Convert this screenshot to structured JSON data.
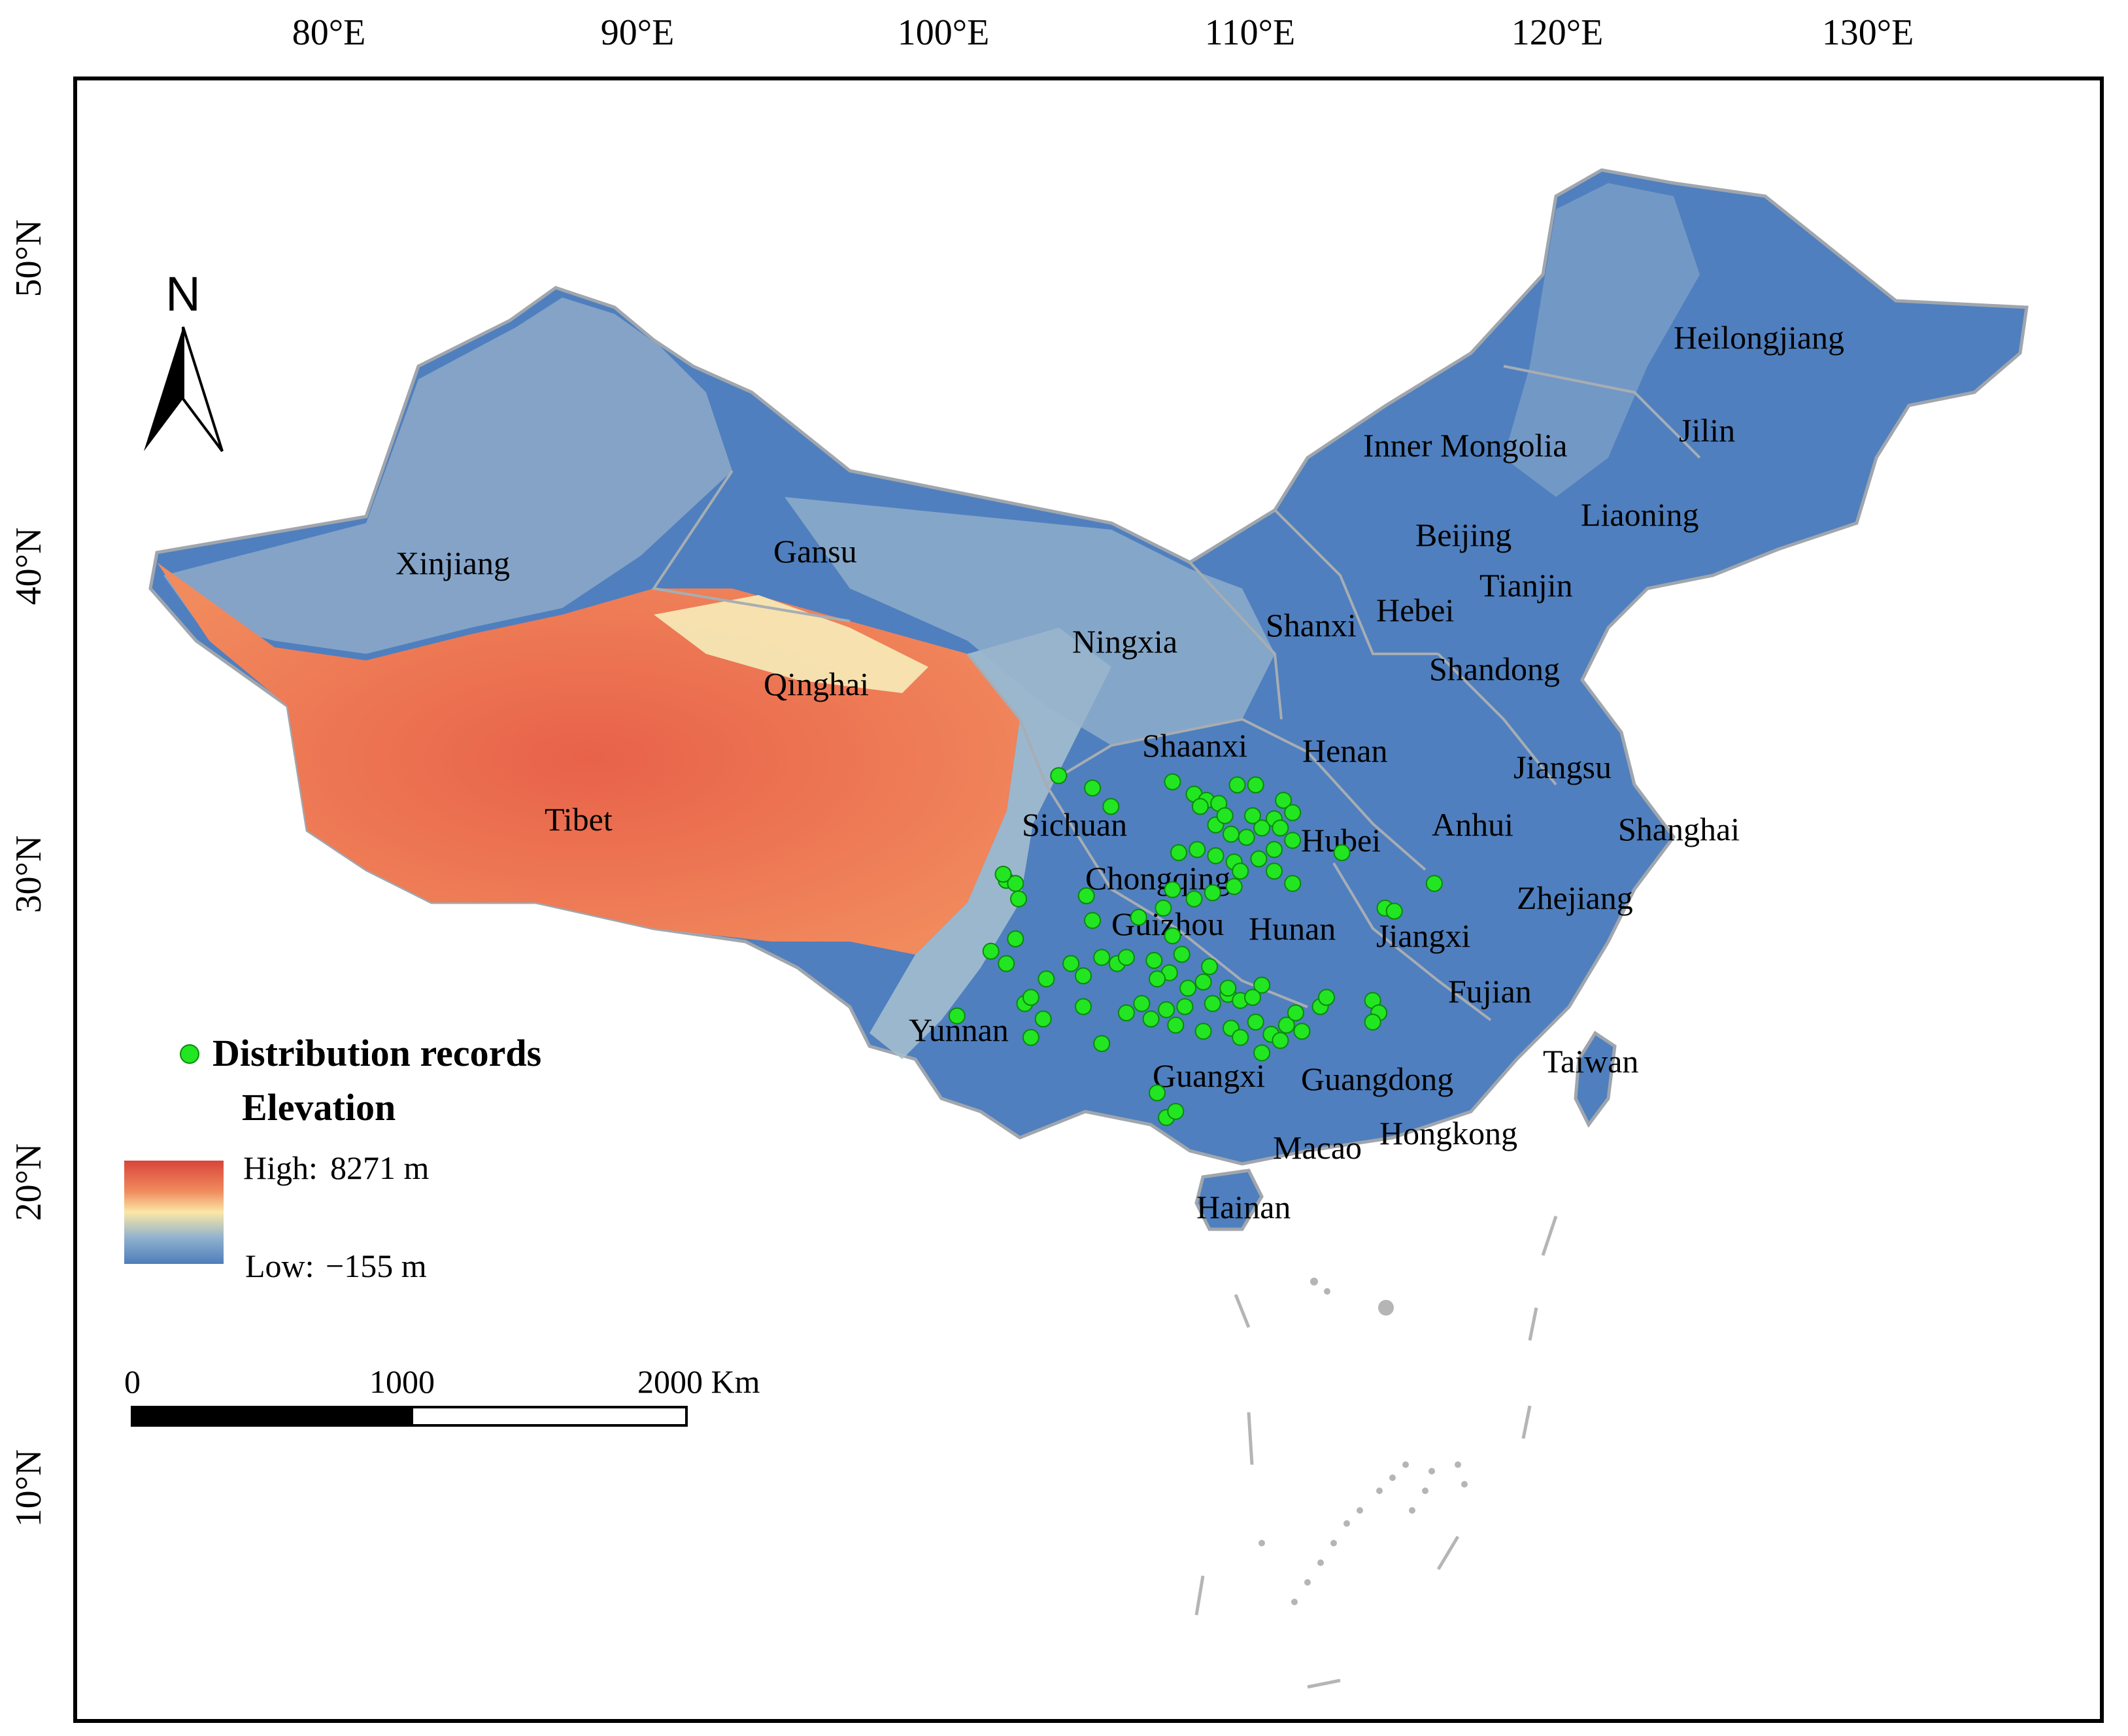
{
  "axes": {
    "top_ticks": [
      "80°E",
      "90°E",
      "100°E",
      "110°E",
      "120°E",
      "130°E"
    ],
    "left_ticks": [
      "50°N",
      "40°N",
      "30°N",
      "20°N",
      "10°N"
    ]
  },
  "north_arrow": {
    "label": "N"
  },
  "provinces": [
    "Heilongjiang",
    "Jilin",
    "Inner Mongolia",
    "Liaoning",
    "Beijing",
    "Tianjin",
    "Hebei",
    "Shanxi",
    "Shandong",
    "Xinjiang",
    "Gansu",
    "Ningxia",
    "Qinghai",
    "Tibet",
    "Shaanxi",
    "Henan",
    "Jiangsu",
    "Anhui",
    "Shanghai",
    "Hubei",
    "Sichuan",
    "Chongqing",
    "Zhejiang",
    "Guizhou",
    "Hunan",
    "Jiangxi",
    "Fujian",
    "Yunnan",
    "Taiwan",
    "Guangxi",
    "Guangdong",
    "Hongkong",
    "Macao",
    "Hainan"
  ],
  "legend": {
    "records_label": "Distribution records",
    "elevation_label": "Elevation",
    "high_label": "High:",
    "high_value": "8271 m",
    "low_label": "Low:",
    "low_value": "−155 m",
    "point_color": "#22e622",
    "ramp_colors": [
      "#d9443a",
      "#f08c5e",
      "#fbe7a6",
      "#8fb1cf",
      "#4f7db9"
    ]
  },
  "scale_bar": {
    "labels": [
      "0",
      "1000",
      "2000 Km"
    ]
  },
  "colors": {
    "land_low": "#4c7ebd",
    "land_high": "#e05a40",
    "border": "#9aa0a8",
    "islands": "#b5b5b5"
  },
  "distribution_records": [
    [
      103.7,
      33.2
    ],
    [
      104.8,
      32.8
    ],
    [
      105.4,
      32.2
    ],
    [
      107.4,
      33.0
    ],
    [
      108.1,
      32.6
    ],
    [
      108.5,
      32.4
    ],
    [
      108.9,
      32.3
    ],
    [
      109.5,
      32.9
    ],
    [
      110.1,
      32.9
    ],
    [
      111.0,
      32.4
    ],
    [
      111.3,
      32.0
    ],
    [
      110.7,
      31.8
    ],
    [
      110.3,
      31.5
    ],
    [
      109.8,
      31.2
    ],
    [
      109.3,
      31.3
    ],
    [
      108.8,
      31.6
    ],
    [
      108.3,
      32.2
    ],
    [
      109.1,
      31.9
    ],
    [
      110.0,
      31.9
    ],
    [
      110.9,
      31.5
    ],
    [
      111.3,
      31.1
    ],
    [
      110.7,
      30.8
    ],
    [
      110.2,
      30.5
    ],
    [
      109.4,
      30.4
    ],
    [
      108.8,
      30.6
    ],
    [
      108.2,
      30.8
    ],
    [
      107.6,
      30.7
    ],
    [
      109.6,
      30.1
    ],
    [
      110.7,
      30.1
    ],
    [
      111.3,
      29.7
    ],
    [
      109.4,
      29.6
    ],
    [
      108.7,
      29.4
    ],
    [
      108.1,
      29.2
    ],
    [
      107.4,
      29.5
    ],
    [
      107.1,
      28.9
    ],
    [
      106.3,
      28.6
    ],
    [
      104.6,
      29.3
    ],
    [
      104.8,
      28.5
    ],
    [
      107.4,
      28.0
    ],
    [
      107.7,
      27.4
    ],
    [
      107.3,
      26.8
    ],
    [
      106.9,
      26.6
    ],
    [
      107.9,
      26.3
    ],
    [
      108.4,
      26.5
    ],
    [
      109.2,
      26.1
    ],
    [
      110.3,
      26.4
    ],
    [
      109.6,
      25.9
    ],
    [
      108.7,
      25.8
    ],
    [
      107.8,
      25.7
    ],
    [
      107.2,
      25.6
    ],
    [
      106.7,
      25.3
    ],
    [
      105.9,
      25.5
    ],
    [
      106.4,
      25.8
    ],
    [
      107.5,
      25.1
    ],
    [
      108.4,
      24.9
    ],
    [
      109.3,
      25.0
    ],
    [
      109.6,
      24.7
    ],
    [
      110.1,
      25.2
    ],
    [
      110.6,
      24.8
    ],
    [
      111.1,
      25.1
    ],
    [
      111.4,
      25.5
    ],
    [
      110.3,
      24.2
    ],
    [
      110.9,
      24.6
    ],
    [
      111.6,
      24.9
    ],
    [
      112.2,
      25.7
    ],
    [
      112.4,
      26.0
    ],
    [
      113.9,
      25.9
    ],
    [
      114.1,
      25.5
    ],
    [
      113.9,
      25.2
    ],
    [
      114.3,
      28.9
    ],
    [
      114.6,
      28.8
    ],
    [
      115.9,
      29.7
    ],
    [
      112.9,
      30.7
    ],
    [
      106.9,
      22.9
    ],
    [
      107.2,
      22.1
    ],
    [
      107.5,
      22.3
    ],
    [
      105.1,
      24.5
    ],
    [
      104.5,
      25.7
    ],
    [
      103.2,
      25.3
    ],
    [
      102.8,
      24.7
    ],
    [
      102.6,
      25.8
    ],
    [
      102.8,
      26.0
    ],
    [
      103.3,
      26.6
    ],
    [
      104.1,
      27.1
    ],
    [
      104.5,
      26.7
    ],
    [
      105.1,
      27.3
    ],
    [
      105.6,
      27.1
    ],
    [
      101.5,
      27.5
    ],
    [
      102.0,
      27.1
    ],
    [
      102.3,
      27.9
    ],
    [
      102.0,
      29.8
    ],
    [
      102.3,
      29.7
    ],
    [
      102.4,
      29.2
    ],
    [
      101.9,
      30.0
    ],
    [
      100.4,
      25.4
    ],
    [
      105.9,
      27.3
    ],
    [
      106.8,
      27.2
    ],
    [
      108.6,
      27.0
    ],
    [
      109.2,
      26.3
    ],
    [
      110.0,
      26.0
    ]
  ]
}
